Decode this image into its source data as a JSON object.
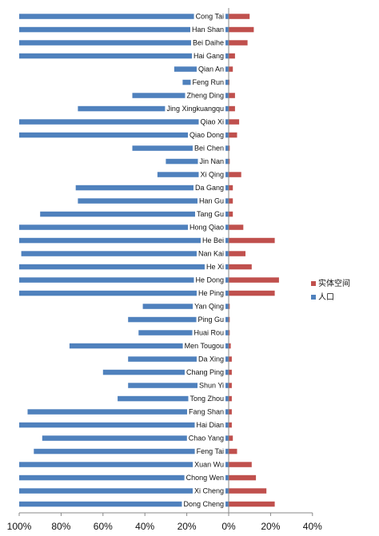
{
  "chart_data": {
    "type": "bar",
    "orientation": "horizontal-diverging",
    "categories": [
      "Cong Tai",
      "Han Shan",
      "Bei Daihe",
      "Hai Gang",
      "Qian An",
      "Feng Run",
      "Zheng Ding",
      "Jing Xingkuangqu",
      "Qiao Xi",
      "Qiao Dong",
      "Bei Chen",
      "Jin Nan",
      "Xi Qing",
      "Da Gang",
      "Han Gu",
      "Tang Gu",
      "Hong Qiao",
      "He Bei",
      "Nan Kai",
      "He Xi",
      "He Dong",
      "He Ping",
      "Yan Qing",
      "Ping Gu",
      "Huai Rou",
      "Men Tougou",
      "Da Xing",
      "Chang Ping",
      "Shun Yi",
      "Tong Zhou",
      "Fang Shan",
      "Hai Dian",
      "Chao Yang",
      "Feng Tai",
      "Xuan Wu",
      "Chong Wen",
      "Xi Cheng",
      "Dong Cheng"
    ],
    "series": [
      {
        "name": "实体空间",
        "color": "#c0504d",
        "values": [
          10,
          12,
          9,
          3,
          2,
          0,
          3,
          3,
          5,
          4,
          0.5,
          0.5,
          6,
          2,
          2,
          2,
          7,
          22,
          8,
          11,
          24,
          22,
          0.5,
          0.5,
          0.5,
          1,
          1.5,
          1.5,
          1.5,
          1.5,
          1.5,
          1.5,
          2,
          4,
          11,
          13,
          18,
          22
        ]
      },
      {
        "name": "人口",
        "color": "#4f81bd",
        "values": [
          100,
          100,
          100,
          100,
          26,
          22,
          46,
          72,
          100,
          100,
          46,
          30,
          34,
          73,
          72,
          90,
          100,
          100,
          99,
          100,
          100,
          100,
          41,
          48,
          43,
          76,
          48,
          60,
          48,
          53,
          96,
          100,
          89,
          93,
          100,
          100,
          100,
          100
        ]
      }
    ],
    "x_tick_labels": [
      "100%",
      "80%",
      "60%",
      "40%",
      "20%",
      "0%",
      "20%",
      "40%"
    ],
    "xlim": [
      -100,
      40
    ],
    "grid": false,
    "legend_position": "right"
  }
}
